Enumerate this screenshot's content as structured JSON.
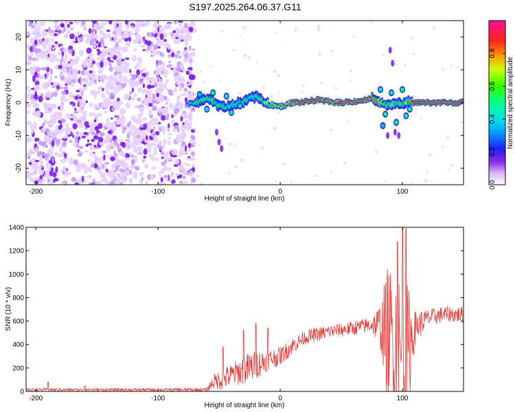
{
  "title": "S197.2025.264.06.37.G11",
  "colors": {
    "line": "#e53935",
    "speckle": "#7a1bf0",
    "track_core": "#e8173f"
  },
  "chart_data": [
    {
      "type": "heatmap",
      "xlabel": "Height of straight line (km)",
      "ylabel": "Frequency (Hz)",
      "xlim": [
        -208,
        150
      ],
      "ylim": [
        -25,
        25
      ],
      "xticks": [
        -200,
        -100,
        0,
        100
      ],
      "yticks": [
        -20,
        -10,
        0,
        10,
        20
      ],
      "colorbar": {
        "label": "Normalized spectral amplitude",
        "range": [
          0,
          1
        ],
        "ticks": [
          0,
          0.2,
          0.4,
          0.6,
          0.8
        ],
        "tick_labels": [
          "0.0",
          "0.2",
          "0.4",
          "0.6",
          "0.8"
        ]
      },
      "regions": [
        {
          "name": "noise",
          "x_range": [
            -208,
            -72
          ],
          "y_range": [
            -25,
            25
          ]
        },
        {
          "name": "signal track",
          "x_range": [
            -75,
            150
          ],
          "center_hz": 0
        }
      ],
      "track": {
        "x": [
          -75,
          -65,
          -58,
          -52,
          -45,
          -38,
          -30,
          -20,
          -10,
          0,
          10,
          20,
          30,
          40,
          50,
          60,
          70,
          75,
          80,
          85,
          90,
          95,
          100,
          105,
          110,
          120,
          130,
          140,
          150
        ],
        "center_hz": [
          -0.5,
          0.5,
          1.2,
          -0.5,
          -1.5,
          -0.8,
          0.5,
          2,
          -0.5,
          -1.2,
          0,
          0.2,
          0.8,
          0.3,
          0,
          0.4,
          0.8,
          1.5,
          0.2,
          -0.5,
          -0.8,
          0.2,
          -0.5,
          0.3,
          0,
          0,
          0,
          0,
          0
        ],
        "amplitude": [
          0.45,
          0.5,
          0.55,
          0.5,
          0.45,
          0.45,
          0.45,
          0.5,
          0.6,
          0.7,
          0.85,
          0.9,
          0.92,
          0.9,
          0.92,
          0.9,
          0.88,
          0.85,
          0.8,
          0.6,
          0.6,
          0.55,
          0.55,
          0.6,
          0.95,
          0.97,
          0.97,
          0.97,
          0.97
        ]
      }
    },
    {
      "type": "line",
      "xlabel": "Height of straight line (km)",
      "ylabel": "SNR (10 * v/v)",
      "xlim": [
        -208,
        150
      ],
      "ylim": [
        0,
        1400
      ],
      "xticks": [
        -200,
        -100,
        0,
        100
      ],
      "yticks": [
        0,
        200,
        400,
        600,
        800,
        1000,
        1200,
        1400
      ],
      "envelope": {
        "x": [
          -208,
          -190,
          -160,
          -100,
          -60,
          -55,
          -48,
          -35,
          -25,
          -10,
          0,
          10,
          20,
          40,
          60,
          75,
          82,
          88,
          95,
          100,
          105,
          110,
          120,
          130,
          140,
          150
        ],
        "baseline": [
          15,
          15,
          15,
          15,
          15,
          80,
          100,
          160,
          200,
          270,
          300,
          390,
          460,
          510,
          540,
          570,
          560,
          480,
          350,
          200,
          350,
          540,
          620,
          650,
          660,
          650
        ],
        "amplitude": [
          12,
          12,
          12,
          12,
          15,
          60,
          90,
          110,
          140,
          90,
          80,
          70,
          60,
          60,
          60,
          70,
          200,
          600,
          750,
          800,
          550,
          150,
          80,
          70,
          70,
          70
        ]
      },
      "spikes": [
        {
          "x": -190,
          "y": 80
        },
        {
          "x": -160,
          "y": 50
        },
        {
          "x": -47,
          "y": 380
        },
        {
          "x": -30,
          "y": 520
        },
        {
          "x": -20,
          "y": 580
        },
        {
          "x": -10,
          "y": 540
        },
        {
          "x": 96,
          "y": 1280
        },
        {
          "x": 100,
          "y": 1400
        },
        {
          "x": 103,
          "y": 1390
        }
      ]
    }
  ]
}
